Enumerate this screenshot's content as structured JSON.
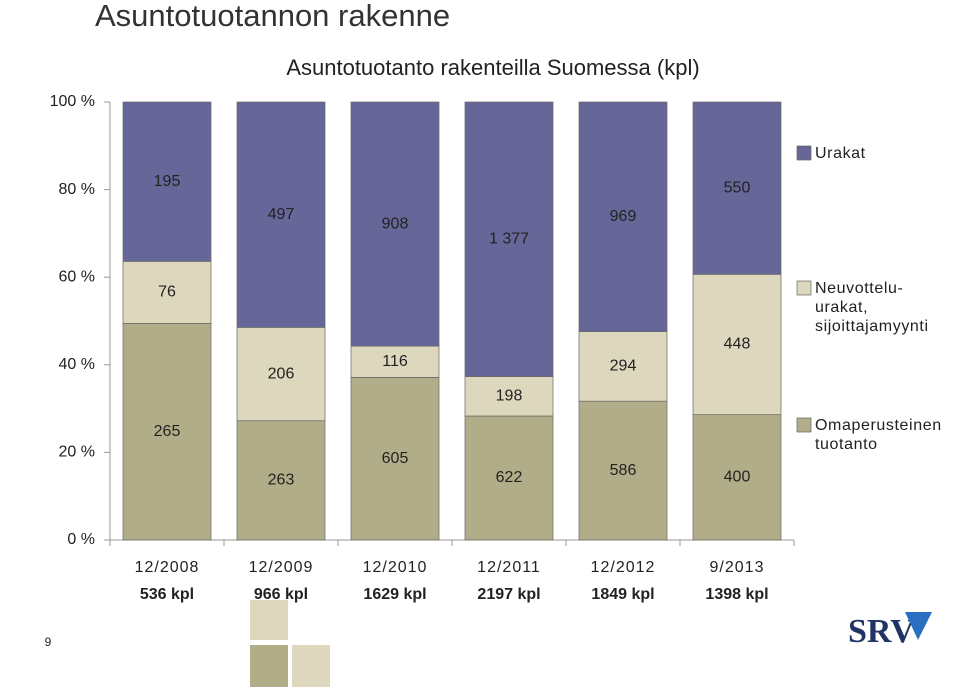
{
  "slide_title": "Asuntotuotannon rakenne",
  "page_number": "9",
  "logo": "SRV",
  "chart_data": {
    "type": "stacked_percent_bar",
    "title": "Asuntotuotanto rakenteilla Suomessa (kpl)",
    "categories": [
      "12/2008",
      "12/2009",
      "12/2010",
      "12/2011",
      "12/2012",
      "9/2013"
    ],
    "category_totals": [
      "536 kpl",
      "966 kpl",
      "1629 kpl",
      "2197 kpl",
      "1849 kpl",
      "1398 kpl"
    ],
    "series": [
      {
        "name": "Omaperusteinen tuotanto",
        "color": "#b2ad89",
        "values": [
          265,
          263,
          605,
          622,
          586,
          400
        ]
      },
      {
        "name": "Neuvottelu-urakat, sijoittajamyynti",
        "color": "#ddd8bd",
        "values": [
          76,
          206,
          116,
          198,
          294,
          448
        ]
      },
      {
        "name": "Urakat",
        "color": "#666699",
        "values": [
          195,
          497,
          908,
          1377,
          969,
          550
        ],
        "value_labels": [
          "195",
          "497",
          "908",
          "1 377",
          "969",
          "550"
        ]
      }
    ],
    "ylim": [
      0,
      100
    ],
    "yticks": [
      {
        "value": 0,
        "label": "0 %"
      },
      {
        "value": 20,
        "label": "20 %"
      },
      {
        "value": 40,
        "label": "40 %"
      },
      {
        "value": 60,
        "label": "60 %"
      },
      {
        "value": 80,
        "label": "80 %"
      },
      {
        "value": 100,
        "label": "100 %"
      }
    ]
  }
}
